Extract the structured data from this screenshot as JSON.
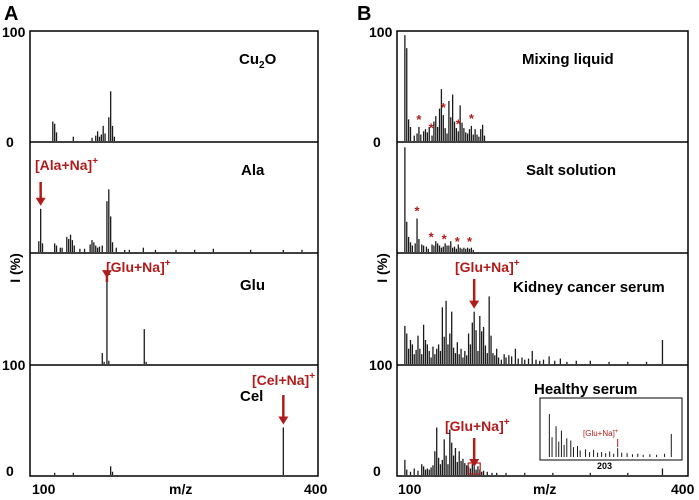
{
  "figure": {
    "panel_a_label": "A",
    "panel_b_label": "B",
    "y_axis_label": "I (%)",
    "x_axis_label": "m/z",
    "x_tick_min": "100",
    "x_tick_max": "400",
    "y_tick_100": "100",
    "y_tick_0": "0",
    "colors": {
      "annotation": "#b01c1c",
      "axis": "#000000",
      "peak": "#1a1a1a"
    }
  },
  "chart_data": [
    {
      "type": "bar",
      "name": "Cu2O",
      "title_main": "Cu",
      "title_sub": "2",
      "title_tail": "O",
      "xlim": [
        100,
        400
      ],
      "ylim": [
        0,
        100
      ],
      "peaks": [
        [
          118,
          18
        ],
        [
          120,
          16
        ],
        [
          122,
          8
        ],
        [
          140,
          4
        ],
        [
          160,
          3
        ],
        [
          164,
          5
        ],
        [
          166,
          9
        ],
        [
          168,
          4
        ],
        [
          170,
          6
        ],
        [
          172,
          14
        ],
        [
          174,
          7
        ],
        [
          178,
          22
        ],
        [
          180,
          46
        ],
        [
          182,
          14
        ],
        [
          184,
          4
        ]
      ],
      "annotation": null,
      "stars": []
    },
    {
      "type": "bar",
      "name": "Ala",
      "title": "Ala",
      "xlim": [
        100,
        400
      ],
      "ylim": [
        0,
        100
      ],
      "peaks": [
        [
          103,
          10
        ],
        [
          105,
          40
        ],
        [
          107,
          8
        ],
        [
          120,
          8
        ],
        [
          122,
          6
        ],
        [
          126,
          4
        ],
        [
          128,
          4
        ],
        [
          133,
          14
        ],
        [
          135,
          12
        ],
        [
          137,
          16
        ],
        [
          139,
          11
        ],
        [
          141,
          6
        ],
        [
          147,
          3
        ],
        [
          152,
          3
        ],
        [
          158,
          7
        ],
        [
          160,
          11
        ],
        [
          162,
          9
        ],
        [
          164,
          6
        ],
        [
          166,
          4
        ],
        [
          168,
          5
        ],
        [
          171,
          6
        ],
        [
          176,
          47
        ],
        [
          178,
          58
        ],
        [
          180,
          33
        ],
        [
          182,
          9
        ],
        [
          186,
          4
        ],
        [
          195,
          2
        ],
        [
          200,
          2
        ],
        [
          215,
          4
        ],
        [
          228,
          2
        ],
        [
          250,
          2
        ],
        [
          270,
          2
        ],
        [
          290,
          3
        ],
        [
          330,
          2
        ],
        [
          365,
          2
        ],
        [
          385,
          2
        ]
      ],
      "annotation": {
        "label": "[Ala+Na]",
        "sup": "+",
        "x": 105
      },
      "stars": []
    },
    {
      "type": "bar",
      "name": "Glu",
      "title": "Glu",
      "xlim": [
        100,
        400
      ],
      "ylim": [
        0,
        100
      ],
      "peaks": [
        [
          171,
          10
        ],
        [
          173,
          2
        ],
        [
          176,
          76
        ],
        [
          178,
          3
        ],
        [
          216,
          32
        ],
        [
          218,
          2
        ]
      ],
      "annotation": {
        "label": "[Glu+Na]",
        "sup": "+",
        "x": 176
      },
      "stars": []
    },
    {
      "type": "bar",
      "name": "Cel",
      "title": "Cel",
      "xlim": [
        100,
        400
      ],
      "ylim": [
        0,
        100
      ],
      "peaks": [
        [
          120,
          2
        ],
        [
          140,
          2
        ],
        [
          180,
          8
        ],
        [
          182,
          3
        ],
        [
          365,
          44
        ]
      ],
      "annotation": {
        "label": "[Cel+Na]",
        "sup": "+",
        "x": 365
      },
      "stars": []
    },
    {
      "type": "bar",
      "name": "Mixing liquid",
      "title": "Mixing liquid",
      "xlim": [
        100,
        400
      ],
      "ylim": [
        0,
        100
      ],
      "peaks": [
        [
          102,
          98
        ],
        [
          104,
          86
        ],
        [
          106,
          20
        ],
        [
          108,
          13
        ],
        [
          112,
          5
        ],
        [
          115,
          7
        ],
        [
          117,
          13
        ],
        [
          119,
          6
        ],
        [
          122,
          9
        ],
        [
          124,
          11
        ],
        [
          126,
          8
        ],
        [
          128,
          13
        ],
        [
          131,
          5
        ],
        [
          133,
          18
        ],
        [
          135,
          23
        ],
        [
          137,
          13
        ],
        [
          139,
          30
        ],
        [
          141,
          48
        ],
        [
          143,
          24
        ],
        [
          145,
          12
        ],
        [
          147,
          7
        ],
        [
          149,
          37
        ],
        [
          151,
          22
        ],
        [
          153,
          43
        ],
        [
          155,
          18
        ],
        [
          157,
          12
        ],
        [
          159,
          9
        ],
        [
          161,
          33
        ],
        [
          163,
          17
        ],
        [
          165,
          12
        ],
        [
          167,
          8
        ],
        [
          169,
          7
        ],
        [
          171,
          11
        ],
        [
          173,
          14
        ],
        [
          175,
          6
        ],
        [
          177,
          11
        ],
        [
          179,
          6
        ],
        [
          181,
          4
        ],
        [
          183,
          11
        ],
        [
          185,
          15
        ],
        [
          187,
          5
        ]
      ],
      "annotation": null,
      "stars": [
        117,
        130,
        143,
        159,
        173
      ]
    },
    {
      "type": "bar",
      "name": "Salt solution",
      "title": "Salt solution",
      "xlim": [
        100,
        400
      ],
      "ylim": [
        0,
        100
      ],
      "peaks": [
        [
          102,
          97
        ],
        [
          104,
          28
        ],
        [
          106,
          14
        ],
        [
          108,
          9
        ],
        [
          110,
          6
        ],
        [
          113,
          8
        ],
        [
          115,
          31
        ],
        [
          117,
          12
        ],
        [
          120,
          7
        ],
        [
          122,
          6
        ],
        [
          125,
          5
        ],
        [
          127,
          3
        ],
        [
          131,
          7
        ],
        [
          133,
          6
        ],
        [
          135,
          10
        ],
        [
          137,
          8
        ],
        [
          139,
          6
        ],
        [
          141,
          4
        ],
        [
          143,
          5
        ],
        [
          145,
          8
        ],
        [
          147,
          6
        ],
        [
          149,
          6
        ],
        [
          151,
          10
        ],
        [
          153,
          4
        ],
        [
          155,
          5
        ],
        [
          157,
          3
        ],
        [
          159,
          7
        ],
        [
          161,
          4
        ],
        [
          163,
          3
        ],
        [
          165,
          4
        ],
        [
          167,
          3
        ],
        [
          169,
          4
        ],
        [
          171,
          3
        ],
        [
          173,
          4
        ],
        [
          175,
          2
        ]
      ],
      "annotation": null,
      "stars": [
        115,
        130,
        144,
        158,
        171
      ]
    },
    {
      "type": "bar",
      "name": "Kidney cancer serum",
      "title": "Kidney cancer serum",
      "xlim": [
        100,
        400
      ],
      "ylim": [
        0,
        100
      ],
      "peaks": [
        [
          102,
          35
        ],
        [
          104,
          28
        ],
        [
          106,
          14
        ],
        [
          108,
          22
        ],
        [
          110,
          18
        ],
        [
          112,
          9
        ],
        [
          114,
          13
        ],
        [
          116,
          26
        ],
        [
          118,
          14
        ],
        [
          120,
          9
        ],
        [
          122,
          36
        ],
        [
          124,
          22
        ],
        [
          126,
          18
        ],
        [
          128,
          12
        ],
        [
          130,
          6
        ],
        [
          132,
          16
        ],
        [
          134,
          9
        ],
        [
          136,
          14
        ],
        [
          138,
          18
        ],
        [
          140,
          12
        ],
        [
          142,
          52
        ],
        [
          144,
          25
        ],
        [
          146,
          58
        ],
        [
          148,
          18
        ],
        [
          150,
          28
        ],
        [
          152,
          48
        ],
        [
          154,
          15
        ],
        [
          156,
          10
        ],
        [
          158,
          20
        ],
        [
          160,
          9
        ],
        [
          162,
          14
        ],
        [
          164,
          6
        ],
        [
          166,
          12
        ],
        [
          168,
          8
        ],
        [
          170,
          28
        ],
        [
          172,
          18
        ],
        [
          174,
          38
        ],
        [
          176,
          48
        ],
        [
          178,
          31
        ],
        [
          180,
          12
        ],
        [
          182,
          44
        ],
        [
          184,
          30
        ],
        [
          186,
          34
        ],
        [
          188,
          17
        ],
        [
          190,
          10
        ],
        [
          192,
          62
        ],
        [
          194,
          26
        ],
        [
          196,
          10
        ],
        [
          198,
          8
        ],
        [
          200,
          14
        ],
        [
          202,
          6
        ],
        [
          205,
          4
        ],
        [
          208,
          9
        ],
        [
          210,
          6
        ],
        [
          213,
          8
        ],
        [
          216,
          7
        ],
        [
          220,
          14
        ],
        [
          223,
          5
        ],
        [
          227,
          6
        ],
        [
          230,
          4
        ],
        [
          234,
          5
        ],
        [
          238,
          12
        ],
        [
          242,
          4
        ],
        [
          246,
          3
        ],
        [
          250,
          4
        ],
        [
          256,
          7
        ],
        [
          262,
          3
        ],
        [
          268,
          5
        ],
        [
          275,
          2
        ],
        [
          285,
          3
        ],
        [
          300,
          3
        ],
        [
          320,
          2
        ],
        [
          340,
          2
        ],
        [
          360,
          2
        ],
        [
          377,
          22
        ]
      ],
      "annotation": {
        "label": "[Glu+Na]",
        "sup": "+",
        "x": 176
      },
      "stars": []
    },
    {
      "type": "bar",
      "name": "Healthy serum",
      "title": "Healthy serum",
      "xlim": [
        100,
        400
      ],
      "ylim": [
        0,
        100
      ],
      "peaks": [
        [
          102,
          14
        ],
        [
          104,
          5
        ],
        [
          108,
          3
        ],
        [
          112,
          6
        ],
        [
          116,
          4
        ],
        [
          120,
          10
        ],
        [
          122,
          8
        ],
        [
          124,
          5
        ],
        [
          126,
          6
        ],
        [
          128,
          5
        ],
        [
          130,
          7
        ],
        [
          132,
          9
        ],
        [
          134,
          22
        ],
        [
          136,
          44
        ],
        [
          138,
          16
        ],
        [
          140,
          10
        ],
        [
          142,
          14
        ],
        [
          144,
          33
        ],
        [
          146,
          18
        ],
        [
          148,
          10
        ],
        [
          150,
          42
        ],
        [
          152,
          30
        ],
        [
          154,
          18
        ],
        [
          156,
          25
        ],
        [
          158,
          12
        ],
        [
          160,
          22
        ],
        [
          162,
          13
        ],
        [
          164,
          15
        ],
        [
          166,
          11
        ],
        [
          168,
          9
        ],
        [
          170,
          8
        ],
        [
          172,
          6
        ],
        [
          174,
          10
        ],
        [
          176,
          8
        ],
        [
          178,
          5
        ],
        [
          180,
          8
        ],
        [
          182,
          5
        ],
        [
          184,
          3
        ],
        [
          186,
          4
        ],
        [
          190,
          3
        ],
        [
          195,
          2
        ],
        [
          200,
          2
        ],
        [
          210,
          2
        ],
        [
          230,
          2
        ],
        [
          260,
          2
        ],
        [
          300,
          2
        ],
        [
          340,
          2
        ],
        [
          377,
          6
        ]
      ],
      "annotation": {
        "label": "[Glu+Na]",
        "sup": "+",
        "x": 176
      },
      "stars": [],
      "inset": {
        "tick_label": "203",
        "annotation": {
          "label": "[Glu+Na]",
          "sup": "+"
        },
        "peaks": [
          [
            0.04,
            0.78
          ],
          [
            0.06,
            0.36
          ],
          [
            0.09,
            0.56
          ],
          [
            0.11,
            0.28
          ],
          [
            0.13,
            0.48
          ],
          [
            0.15,
            0.22
          ],
          [
            0.17,
            0.34
          ],
          [
            0.2,
            0.3
          ],
          [
            0.22,
            0.18
          ],
          [
            0.25,
            0.2
          ],
          [
            0.27,
            0.12
          ],
          [
            0.31,
            0.14
          ],
          [
            0.34,
            0.09
          ],
          [
            0.37,
            0.13
          ],
          [
            0.4,
            0.08
          ],
          [
            0.43,
            0.09
          ],
          [
            0.46,
            0.07
          ],
          [
            0.49,
            0.1
          ],
          [
            0.52,
            0.06
          ],
          [
            0.55,
            0.16
          ],
          [
            0.58,
            0.08
          ],
          [
            0.62,
            0.07
          ],
          [
            0.66,
            0.05
          ],
          [
            0.7,
            0.06
          ],
          [
            0.74,
            0.04
          ],
          [
            0.79,
            0.05
          ],
          [
            0.84,
            0.04
          ],
          [
            0.9,
            0.06
          ],
          [
            0.95,
            0.42
          ]
        ],
        "highlight_peak": 0.55
      }
    }
  ]
}
